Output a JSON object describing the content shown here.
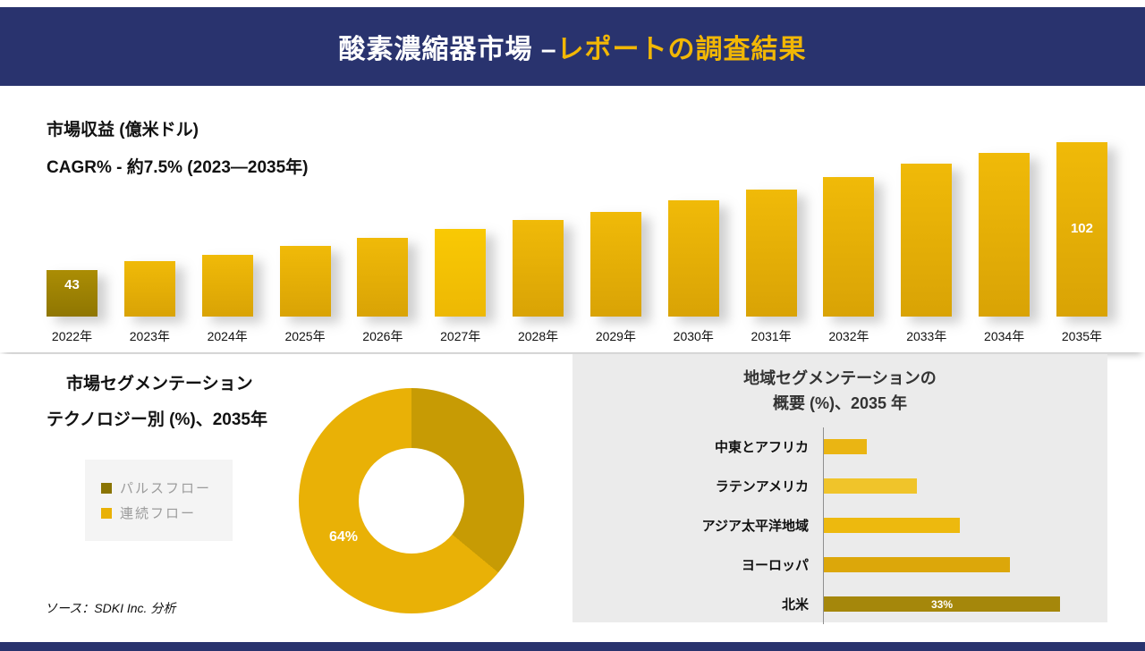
{
  "header": {
    "title_main": "酸素濃縮器市場 –",
    "title_accent": "レポートの調査結果"
  },
  "colors": {
    "navy": "#29336e",
    "accent_gold": "#f2b705",
    "bar_top": "#f0ba08",
    "bar_bottom": "#d9a305",
    "bar_dark_top": "#ab8d04",
    "bar_dark_bottom": "#8f7602",
    "bar_bright_top": "#f9c904",
    "bar_bright_bottom": "#edb804",
    "panel_gray": "#ebebeb"
  },
  "revenue": {
    "metric_label": "市場収益 (億米ドル)",
    "cagr_label": "CAGR% - 約7.5% (2023―2035年)"
  },
  "segmentation": {
    "title_line1": "市場セグメンテーション",
    "title_line2": "テクノロジー別 (%)、2035年",
    "legend": [
      {
        "label": "パルスフロー",
        "color": "#8a7403"
      },
      {
        "label": "連続フロー",
        "color": "#e9b106"
      }
    ],
    "donut_label": "64%"
  },
  "region": {
    "title_line1": "地域セグメンテーションの",
    "title_line2": "概要 (%)、2035 年"
  },
  "source": "ソース：SDKI Inc. 分析",
  "chart_data": [
    {
      "type": "bar",
      "title": "市場収益 (億米ドル)",
      "subtitle": "CAGR% - 約7.5% (2023―2035年)",
      "categories": [
        "2022年",
        "2023年",
        "2024年",
        "2025年",
        "2026年",
        "2027年",
        "2028年",
        "2029年",
        "2030年",
        "2031年",
        "2032年",
        "2033年",
        "2034年",
        "2035年"
      ],
      "values": [
        43,
        47,
        50,
        54,
        58,
        62,
        66,
        70,
        75,
        80,
        86,
        92,
        97,
        102
      ],
      "value_labels": {
        "0": "43",
        "13": "102"
      },
      "xlabel": "",
      "ylabel": "市場収益 (億米ドル)",
      "grid": false,
      "axis_shown": false
    },
    {
      "type": "pie",
      "donut": true,
      "title": "市場セグメンテーション",
      "subtitle": "テクノロジー別 (%)、2035年",
      "slices": [
        {
          "label": "連続フロー",
          "value": 64,
          "color": "#e9b106"
        },
        {
          "label": "パルスフロー",
          "value": 36,
          "color": "#c79b04"
        }
      ],
      "shown_label": "64%",
      "legend_position": "left"
    },
    {
      "type": "bar",
      "orientation": "horizontal",
      "title": "地域セグメンテーションの概要 (%)、2035 年",
      "categories": [
        "中東とアフリカ",
        "ラテンアメリカ",
        "アジア太平洋地域",
        "ヨーロッパ",
        "北米"
      ],
      "values": [
        6,
        13,
        19,
        26,
        33
      ],
      "bar_colors": [
        "#eab513",
        "#f0c42a",
        "#edb90e",
        "#dca70a",
        "#a5870b"
      ],
      "shown_label": "33%",
      "grid": false,
      "axis_shown": true
    }
  ]
}
